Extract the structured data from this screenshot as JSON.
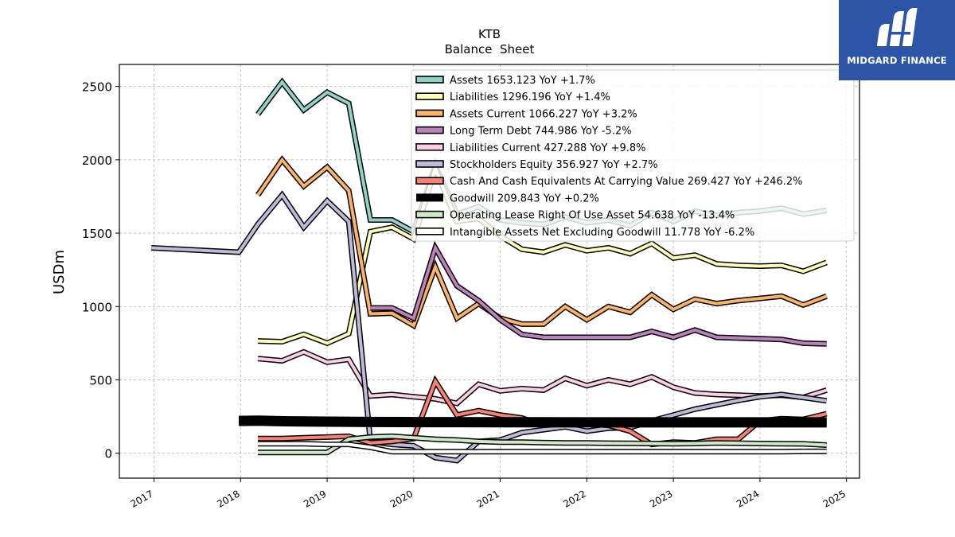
{
  "brand": {
    "name": "MIDGARD FINANCE",
    "color": "#2c55a8"
  },
  "chart_data": {
    "type": "line",
    "title": "KTB",
    "subtitle": "Balance  Sheet",
    "xlabel": "",
    "ylabel": "USDm",
    "xlim": [
      2016.6,
      2025.15
    ],
    "ylim": [
      -170,
      2650
    ],
    "grid": true,
    "legend_position": "top-right",
    "x_ticks": [
      2017,
      2018,
      2019,
      2020,
      2021,
      2022,
      2023,
      2024,
      2025
    ],
    "y_ticks": [
      0,
      500,
      1000,
      1500,
      2000,
      2500
    ],
    "series": [
      {
        "name": "Assets  1653.123 YoY +1.7%",
        "color": "#8dd3c7",
        "width": 4,
        "points": [
          [
            2018.2,
            2310
          ],
          [
            2018.48,
            2530
          ],
          [
            2018.73,
            2340
          ],
          [
            2019.0,
            2460
          ],
          [
            2019.25,
            2385
          ],
          [
            2019.5,
            1590
          ],
          [
            2019.75,
            1590
          ],
          [
            2020.0,
            1510
          ],
          [
            2020.25,
            1960
          ],
          [
            2020.5,
            1630
          ],
          [
            2020.75,
            1680
          ],
          [
            2021.0,
            1590
          ],
          [
            2021.25,
            1570
          ],
          [
            2021.5,
            1560
          ],
          [
            2021.75,
            1610
          ],
          [
            2022.0,
            1570
          ],
          [
            2022.25,
            1590
          ],
          [
            2022.5,
            1550
          ],
          [
            2022.75,
            1640
          ],
          [
            2023.0,
            1580
          ],
          [
            2023.25,
            1650
          ],
          [
            2023.5,
            1620
          ],
          [
            2023.75,
            1640
          ],
          [
            2024.0,
            1650
          ],
          [
            2024.25,
            1670
          ],
          [
            2024.5,
            1630
          ],
          [
            2024.77,
            1655
          ]
        ]
      },
      {
        "name": "Liabilities  1296.196 YoY +1.4%",
        "color": "#ffffb3",
        "width": 4,
        "points": [
          [
            2018.2,
            765
          ],
          [
            2018.48,
            760
          ],
          [
            2018.73,
            810
          ],
          [
            2019.0,
            750
          ],
          [
            2019.25,
            815
          ],
          [
            2019.5,
            1510
          ],
          [
            2019.75,
            1540
          ],
          [
            2020.0,
            1460
          ],
          [
            2020.25,
            1940
          ],
          [
            2020.5,
            1580
          ],
          [
            2020.75,
            1600
          ],
          [
            2021.0,
            1480
          ],
          [
            2021.25,
            1390
          ],
          [
            2021.5,
            1370
          ],
          [
            2021.75,
            1420
          ],
          [
            2022.0,
            1380
          ],
          [
            2022.25,
            1400
          ],
          [
            2022.5,
            1360
          ],
          [
            2022.75,
            1430
          ],
          [
            2023.0,
            1330
          ],
          [
            2023.25,
            1350
          ],
          [
            2023.5,
            1290
          ],
          [
            2023.75,
            1280
          ],
          [
            2024.0,
            1275
          ],
          [
            2024.25,
            1280
          ],
          [
            2024.5,
            1240
          ],
          [
            2024.77,
            1300
          ]
        ]
      },
      {
        "name": "Assets Current  1066.227 YoY +3.2%",
        "color": "#fdb462",
        "width": 4,
        "points": [
          [
            2018.2,
            1760
          ],
          [
            2018.48,
            2000
          ],
          [
            2018.73,
            1820
          ],
          [
            2019.0,
            1950
          ],
          [
            2019.25,
            1790
          ],
          [
            2019.5,
            950
          ],
          [
            2019.75,
            955
          ],
          [
            2020.0,
            870
          ],
          [
            2020.25,
            1270
          ],
          [
            2020.5,
            920
          ],
          [
            2020.75,
            1020
          ],
          [
            2021.0,
            920
          ],
          [
            2021.25,
            880
          ],
          [
            2021.5,
            880
          ],
          [
            2021.75,
            1000
          ],
          [
            2022.0,
            910
          ],
          [
            2022.25,
            1000
          ],
          [
            2022.5,
            960
          ],
          [
            2022.75,
            1080
          ],
          [
            2023.0,
            980
          ],
          [
            2023.25,
            1050
          ],
          [
            2023.5,
            1020
          ],
          [
            2023.75,
            1040
          ],
          [
            2024.0,
            1055
          ],
          [
            2024.25,
            1070
          ],
          [
            2024.5,
            1010
          ],
          [
            2024.77,
            1070
          ]
        ]
      },
      {
        "name": "Long Term Debt  744.986 YoY -5.2%",
        "color": "#bc80bd",
        "width": 4,
        "points": [
          [
            2019.5,
            990
          ],
          [
            2019.75,
            990
          ],
          [
            2020.0,
            920
          ],
          [
            2020.25,
            1400
          ],
          [
            2020.5,
            1140
          ],
          [
            2020.75,
            1040
          ],
          [
            2021.0,
            910
          ],
          [
            2021.25,
            810
          ],
          [
            2021.5,
            790
          ],
          [
            2021.75,
            790
          ],
          [
            2022.0,
            790
          ],
          [
            2022.25,
            790
          ],
          [
            2022.5,
            790
          ],
          [
            2022.75,
            830
          ],
          [
            2023.0,
            790
          ],
          [
            2023.25,
            840
          ],
          [
            2023.5,
            790
          ],
          [
            2023.75,
            785
          ],
          [
            2024.0,
            780
          ],
          [
            2024.25,
            775
          ],
          [
            2024.5,
            750
          ],
          [
            2024.77,
            745
          ]
        ]
      },
      {
        "name": "Liabilities Current  427.288 YoY +9.8%",
        "color": "#fccde5",
        "width": 4,
        "points": [
          [
            2018.2,
            645
          ],
          [
            2018.48,
            630
          ],
          [
            2018.73,
            690
          ],
          [
            2019.0,
            620
          ],
          [
            2019.25,
            640
          ],
          [
            2019.5,
            390
          ],
          [
            2019.75,
            400
          ],
          [
            2020.0,
            385
          ],
          [
            2020.25,
            370
          ],
          [
            2020.5,
            340
          ],
          [
            2020.75,
            470
          ],
          [
            2021.0,
            425
          ],
          [
            2021.25,
            440
          ],
          [
            2021.5,
            430
          ],
          [
            2021.75,
            510
          ],
          [
            2022.0,
            460
          ],
          [
            2022.25,
            500
          ],
          [
            2022.5,
            470
          ],
          [
            2022.75,
            520
          ],
          [
            2023.0,
            450
          ],
          [
            2023.25,
            410
          ],
          [
            2023.5,
            400
          ],
          [
            2023.75,
            395
          ],
          [
            2024.0,
            390
          ],
          [
            2024.25,
            395
          ],
          [
            2024.5,
            380
          ],
          [
            2024.77,
            430
          ]
        ]
      },
      {
        "name": "Stockholders Equity  356.927 YoY +2.7%",
        "color": "#bebada",
        "width": 4,
        "points": [
          [
            2016.97,
            1400
          ],
          [
            2017.98,
            1370
          ],
          [
            2018.2,
            1560
          ],
          [
            2018.48,
            1760
          ],
          [
            2018.73,
            1540
          ],
          [
            2019.0,
            1720
          ],
          [
            2019.25,
            1580
          ],
          [
            2019.5,
            80
          ],
          [
            2019.75,
            60
          ],
          [
            2020.0,
            50
          ],
          [
            2020.25,
            -30
          ],
          [
            2020.5,
            -50
          ],
          [
            2020.75,
            80
          ],
          [
            2021.0,
            90
          ],
          [
            2021.25,
            140
          ],
          [
            2021.5,
            160
          ],
          [
            2021.75,
            180
          ],
          [
            2022.0,
            150
          ],
          [
            2022.25,
            170
          ],
          [
            2022.5,
            175
          ],
          [
            2022.75,
            220
          ],
          [
            2023.0,
            260
          ],
          [
            2023.25,
            300
          ],
          [
            2023.5,
            330
          ],
          [
            2023.75,
            360
          ],
          [
            2024.0,
            385
          ],
          [
            2024.25,
            400
          ],
          [
            2024.5,
            380
          ],
          [
            2024.77,
            357
          ]
        ]
      },
      {
        "name": "Cash And Cash Equivalents At Carrying Value  269.427 YoY +246.2%",
        "color": "#fb8072",
        "width": 4,
        "points": [
          [
            2018.2,
            100
          ],
          [
            2018.48,
            100
          ],
          [
            2018.73,
            105
          ],
          [
            2019.0,
            110
          ],
          [
            2019.25,
            115
          ],
          [
            2019.5,
            70
          ],
          [
            2019.75,
            80
          ],
          [
            2020.0,
            100
          ],
          [
            2020.25,
            490
          ],
          [
            2020.5,
            260
          ],
          [
            2020.75,
            290
          ],
          [
            2021.0,
            260
          ],
          [
            2021.25,
            240
          ],
          [
            2021.5,
            190
          ],
          [
            2021.75,
            200
          ],
          [
            2022.0,
            200
          ],
          [
            2022.25,
            190
          ],
          [
            2022.5,
            150
          ],
          [
            2022.75,
            60
          ],
          [
            2023.0,
            75
          ],
          [
            2023.25,
            70
          ],
          [
            2023.5,
            95
          ],
          [
            2023.75,
            95
          ],
          [
            2024.0,
            220
          ],
          [
            2024.25,
            235
          ],
          [
            2024.5,
            230
          ],
          [
            2024.77,
            269
          ]
        ]
      },
      {
        "name": "Goodwill  209.843 YoY +0.2%",
        "color": "#000000",
        "width": 10,
        "points": [
          [
            2017.98,
            220
          ],
          [
            2018.2,
            222
          ],
          [
            2018.5,
            218
          ],
          [
            2019.0,
            215
          ],
          [
            2019.5,
            213
          ],
          [
            2020.0,
            212
          ],
          [
            2020.5,
            212
          ],
          [
            2021.0,
            211
          ],
          [
            2021.5,
            211
          ],
          [
            2022.0,
            210
          ],
          [
            2022.5,
            210
          ],
          [
            2023.0,
            210
          ],
          [
            2023.5,
            210
          ],
          [
            2024.0,
            210
          ],
          [
            2024.5,
            210
          ],
          [
            2024.77,
            210
          ]
        ]
      },
      {
        "name": "Operating Lease Right Of Use Asset  54.638 YoY -13.4%",
        "color": "#ccebc5",
        "width": 4,
        "points": [
          [
            2018.2,
            5
          ],
          [
            2018.48,
            5
          ],
          [
            2018.73,
            5
          ],
          [
            2019.0,
            5
          ],
          [
            2019.25,
            95
          ],
          [
            2019.5,
            110
          ],
          [
            2019.75,
            115
          ],
          [
            2020.0,
            105
          ],
          [
            2020.25,
            95
          ],
          [
            2020.5,
            90
          ],
          [
            2020.75,
            80
          ],
          [
            2021.0,
            75
          ],
          [
            2021.25,
            75
          ],
          [
            2021.5,
            72
          ],
          [
            2021.75,
            70
          ],
          [
            2022.0,
            70
          ],
          [
            2022.25,
            68
          ],
          [
            2022.5,
            67
          ],
          [
            2022.75,
            66
          ],
          [
            2023.0,
            65
          ],
          [
            2023.25,
            66
          ],
          [
            2023.5,
            70
          ],
          [
            2023.75,
            68
          ],
          [
            2024.0,
            66
          ],
          [
            2024.25,
            65
          ],
          [
            2024.5,
            64
          ],
          [
            2024.77,
            55
          ]
        ]
      },
      {
        "name": "Intangible Assets Net Excluding Goodwill  11.778 YoY -6.2%",
        "color": "#ffffff",
        "width": 4,
        "points": [
          [
            2018.2,
            65
          ],
          [
            2018.48,
            65
          ],
          [
            2018.73,
            65
          ],
          [
            2019.0,
            60
          ],
          [
            2019.25,
            60
          ],
          [
            2019.5,
            40
          ],
          [
            2019.75,
            10
          ],
          [
            2020.0,
            10
          ],
          [
            2020.25,
            10
          ],
          [
            2020.5,
            10
          ],
          [
            2020.75,
            10
          ],
          [
            2021.0,
            10
          ],
          [
            2021.25,
            10
          ],
          [
            2021.5,
            10
          ],
          [
            2021.75,
            10
          ],
          [
            2022.0,
            10
          ],
          [
            2022.25,
            10
          ],
          [
            2022.5,
            10
          ],
          [
            2022.75,
            10
          ],
          [
            2023.0,
            10
          ],
          [
            2023.25,
            10
          ],
          [
            2023.5,
            10
          ],
          [
            2023.75,
            10
          ],
          [
            2024.0,
            10
          ],
          [
            2024.25,
            10
          ],
          [
            2024.5,
            12
          ],
          [
            2024.77,
            12
          ]
        ]
      }
    ]
  }
}
